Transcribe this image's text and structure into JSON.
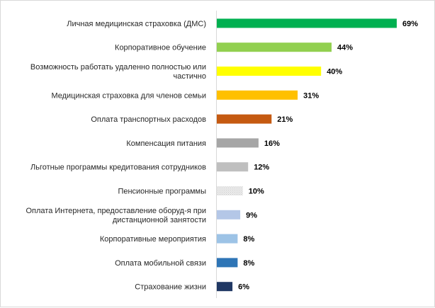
{
  "chart_data": {
    "type": "bar",
    "orientation": "horizontal",
    "title": "",
    "xlabel": "",
    "ylabel": "",
    "xlim": [
      0,
      69
    ],
    "grid": false,
    "legend": "none",
    "value_suffix": "%",
    "categories": [
      [
        "Личная медицинская страховка (ДМС)"
      ],
      [
        "Корпоративное обучение"
      ],
      [
        "Возможность работать удаленно полностью или",
        "частично"
      ],
      [
        "Медицинская страховка для членов семьи"
      ],
      [
        "Оплата транспортных расходов"
      ],
      [
        "Компенсация питания"
      ],
      [
        "Льготные программы кредитования сотрудников"
      ],
      [
        "Пенсионные программы"
      ],
      [
        "Оплата Интернета, предоставление оборуд-я при",
        "дистанционной занятости"
      ],
      [
        "Корпоративные мероприятия"
      ],
      [
        "Оплата мобильной связи"
      ],
      [
        "Страхование жизни"
      ]
    ],
    "values": [
      69,
      44,
      40,
      31,
      21,
      16,
      12,
      10,
      9,
      8,
      8,
      6
    ],
    "colors": [
      "#00b050",
      "#92d050",
      "#ffff00",
      "#ffc000",
      "#c55a11",
      "#a6a6a6",
      "#bfbfbf",
      "#d9d9d9",
      "#b4c7e7",
      "#9dc3e6",
      "#2e75b6",
      "#203864"
    ],
    "patterned": [
      false,
      false,
      false,
      false,
      false,
      false,
      false,
      true,
      false,
      false,
      false,
      false
    ]
  }
}
